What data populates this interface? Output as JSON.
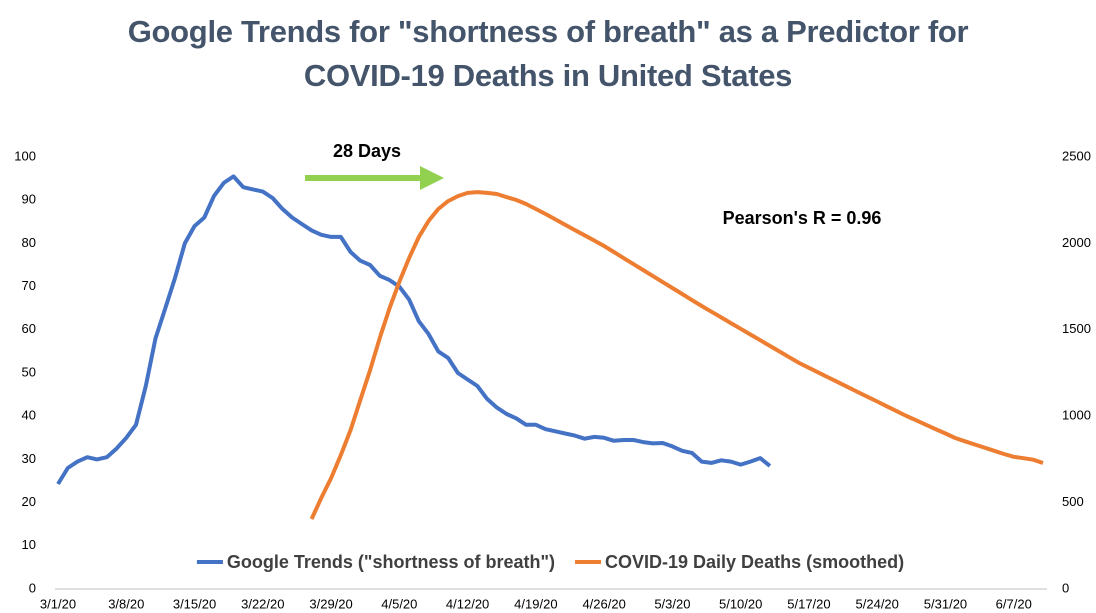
{
  "chart_data": {
    "type": "line",
    "title": "Google Trends for \"shortness of breath\" as a Predictor for COVID-19 Deaths in United States",
    "annotations": [
      "28 Days",
      "Pearson's R = 0.96"
    ],
    "categories": [
      "3/1/20",
      null,
      null,
      null,
      null,
      null,
      null,
      "3/8/20",
      null,
      null,
      null,
      null,
      null,
      null,
      "3/15/20",
      null,
      null,
      null,
      null,
      null,
      null,
      "3/22/20",
      null,
      null,
      null,
      null,
      null,
      null,
      "3/29/20",
      null,
      null,
      null,
      null,
      null,
      null,
      "4/5/20",
      null,
      null,
      null,
      null,
      null,
      null,
      "4/12/20",
      null,
      null,
      null,
      null,
      null,
      null,
      "4/19/20",
      null,
      null,
      null,
      null,
      null,
      null,
      "4/26/20",
      null,
      null,
      null,
      null,
      null,
      null,
      "5/3/20",
      null,
      null,
      null,
      null,
      null,
      null,
      "5/10/20",
      null,
      null,
      null,
      null,
      null,
      null,
      "5/17/20",
      null,
      null,
      null,
      null,
      null,
      null,
      "5/24/20",
      null,
      null,
      null,
      null,
      null,
      null,
      "5/31/20",
      null,
      null,
      null,
      null,
      null,
      null,
      "6/7/20",
      null,
      null,
      null
    ],
    "series": [
      {
        "name": "Google Trends (\"shortness of breath\")",
        "color": "#4472c4",
        "axis": "y",
        "values": [
          24.3,
          28,
          29.5,
          30.5,
          30,
          30.5,
          32.5,
          35,
          38,
          47,
          58,
          65,
          72,
          80,
          84,
          86,
          91,
          94,
          95.5,
          93,
          92.5,
          92,
          90.5,
          88,
          86,
          84.5,
          83,
          82,
          81.5,
          81.5,
          78,
          76,
          75,
          72.5,
          71.5,
          70,
          67,
          62,
          59,
          55,
          53.5,
          50,
          48.5,
          47,
          44,
          42,
          40.5,
          39.5,
          38,
          38,
          37,
          36.5,
          36,
          35.5,
          34.8,
          35.2,
          35,
          34.3,
          34.5,
          34.5,
          34,
          33.7,
          33.8,
          33,
          32,
          31.5,
          29.5,
          29.2,
          29.8,
          29.5,
          28.8,
          29.5,
          30.3,
          28.5,
          null,
          null,
          null,
          null,
          null,
          null,
          null,
          null,
          null,
          null,
          null,
          null,
          null,
          null,
          null,
          null,
          null,
          null,
          null,
          null,
          null,
          null,
          null,
          null,
          null,
          null,
          null,
          null
        ]
      },
      {
        "name": "COVID-19 Daily Deaths (smoothed)",
        "color": "#ed7d31",
        "axis": "y2",
        "values": [
          null,
          null,
          null,
          null,
          null,
          null,
          null,
          null,
          null,
          null,
          null,
          null,
          null,
          null,
          null,
          null,
          null,
          null,
          null,
          null,
          null,
          null,
          null,
          null,
          null,
          null,
          405,
          527,
          642,
          775,
          920,
          1094,
          1267,
          1453,
          1626,
          1777,
          1915,
          2037,
          2130,
          2199,
          2245,
          2274,
          2292,
          2297,
          2292,
          2286,
          2268,
          2251,
          2228,
          2199,
          2170,
          2139,
          2108,
          2077,
          2047,
          2016,
          1985,
          1950,
          1915,
          1880,
          1846,
          1811,
          1776,
          1742,
          1707,
          1672,
          1638,
          1605,
          1572,
          1539,
          1506,
          1473,
          1440,
          1407,
          1374,
          1341,
          1308,
          1280,
          1252,
          1224,
          1196,
          1168,
          1140,
          1112,
          1085,
          1057,
          1029,
          1001,
          976,
          950,
          925,
          900,
          874,
          855,
          836,
          818,
          800,
          781,
          765,
          757,
          748,
          729
        ]
      }
    ],
    "ylim": [
      0,
      100
    ],
    "yticks": [
      0,
      10,
      20,
      30,
      40,
      50,
      60,
      70,
      80,
      90,
      100
    ],
    "y2lim": [
      0,
      2500
    ],
    "y2ticks": [
      0,
      500,
      1000,
      1500,
      2000,
      2500
    ],
    "grid": false,
    "legend": "bottom"
  }
}
